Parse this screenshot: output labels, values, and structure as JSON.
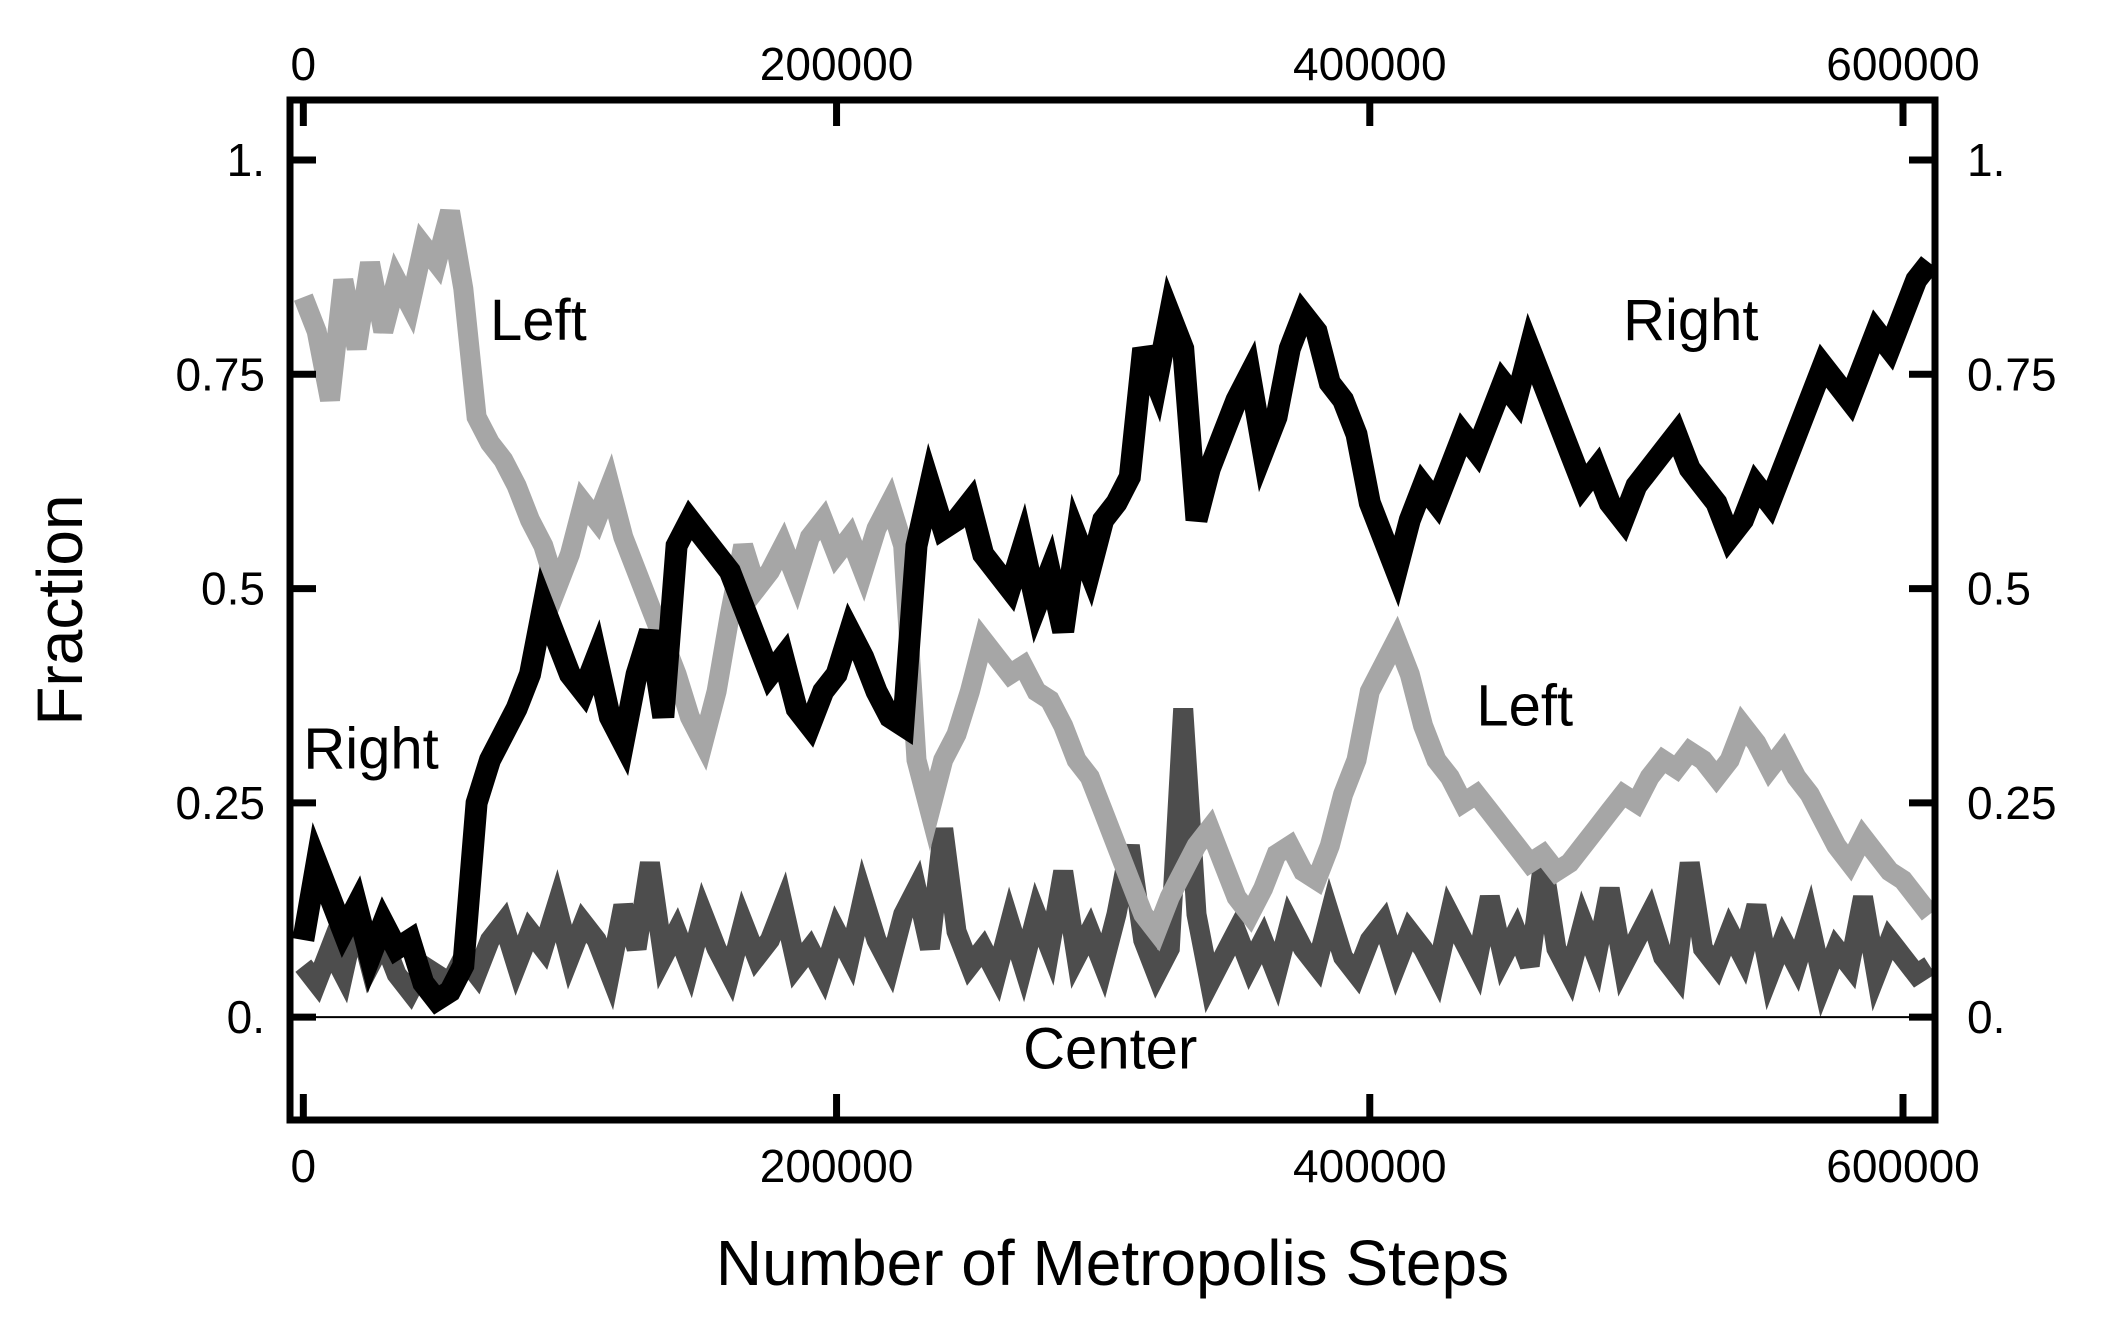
{
  "chart_data": {
    "type": "line",
    "title": "",
    "xlabel": "Number of Metropolis Steps",
    "ylabel": "Fraction",
    "xlim": [
      -5000,
      612000
    ],
    "ylim": [
      -0.12,
      1.07
    ],
    "x_ticks": [
      0,
      200000,
      400000,
      600000
    ],
    "x_tick_labels": [
      "0",
      "200000",
      "400000",
      "600000"
    ],
    "y_ticks": [
      0,
      0.25,
      0.5,
      0.75,
      1
    ],
    "y_tick_labels": [
      "0.",
      "0.25",
      "0.5",
      "0.75",
      "1."
    ],
    "mirror_axes": true,
    "grid": false,
    "legend": "none",
    "zero_line": true,
    "series": [
      {
        "name": "Left",
        "color": "#a6a6a6",
        "x": [
          0,
          5000,
          10000,
          15000,
          20000,
          25000,
          30000,
          35000,
          40000,
          45000,
          50000,
          55000,
          60000,
          65000,
          70000,
          75000,
          80000,
          85000,
          90000,
          95000,
          100000,
          105000,
          110000,
          115000,
          120000,
          125000,
          130000,
          135000,
          140000,
          145000,
          150000,
          155000,
          160000,
          165000,
          170000,
          175000,
          180000,
          185000,
          190000,
          195000,
          200000,
          205000,
          210000,
          215000,
          220000,
          225000,
          230000,
          235000,
          240000,
          245000,
          250000,
          255000,
          260000,
          265000,
          270000,
          275000,
          280000,
          285000,
          290000,
          295000,
          300000,
          305000,
          310000,
          315000,
          320000,
          325000,
          330000,
          335000,
          340000,
          345000,
          350000,
          355000,
          360000,
          365000,
          370000,
          375000,
          380000,
          385000,
          390000,
          395000,
          400000,
          405000,
          410000,
          415000,
          420000,
          425000,
          430000,
          435000,
          440000,
          445000,
          450000,
          455000,
          460000,
          465000,
          470000,
          475000,
          480000,
          485000,
          490000,
          495000,
          500000,
          505000,
          510000,
          515000,
          520000,
          525000,
          530000,
          535000,
          540000,
          545000,
          550000,
          555000,
          560000,
          565000,
          570000,
          575000,
          580000,
          585000,
          590000,
          595000,
          600000,
          605000,
          610000
        ],
        "values": [
          0.84,
          0.8,
          0.72,
          0.86,
          0.78,
          0.88,
          0.8,
          0.86,
          0.83,
          0.9,
          0.88,
          0.94,
          0.85,
          0.7,
          0.67,
          0.65,
          0.62,
          0.58,
          0.55,
          0.5,
          0.54,
          0.6,
          0.58,
          0.62,
          0.56,
          0.52,
          0.48,
          0.44,
          0.4,
          0.35,
          0.32,
          0.38,
          0.47,
          0.55,
          0.5,
          0.52,
          0.55,
          0.51,
          0.56,
          0.58,
          0.54,
          0.56,
          0.52,
          0.57,
          0.6,
          0.55,
          0.3,
          0.24,
          0.3,
          0.33,
          0.38,
          0.44,
          0.42,
          0.4,
          0.41,
          0.38,
          0.37,
          0.34,
          0.3,
          0.28,
          0.24,
          0.2,
          0.16,
          0.12,
          0.1,
          0.14,
          0.17,
          0.2,
          0.22,
          0.18,
          0.14,
          0.12,
          0.15,
          0.19,
          0.2,
          0.17,
          0.16,
          0.2,
          0.26,
          0.3,
          0.38,
          0.41,
          0.44,
          0.4,
          0.34,
          0.3,
          0.28,
          0.25,
          0.26,
          0.24,
          0.22,
          0.2,
          0.18,
          0.19,
          0.17,
          0.18,
          0.2,
          0.22,
          0.24,
          0.26,
          0.25,
          0.28,
          0.3,
          0.29,
          0.31,
          0.3,
          0.28,
          0.3,
          0.34,
          0.32,
          0.29,
          0.31,
          0.28,
          0.26,
          0.23,
          0.2,
          0.18,
          0.21,
          0.19,
          0.17,
          0.16,
          0.14,
          0.12
        ]
      },
      {
        "name": "Right",
        "color": "#000000",
        "x": [
          0,
          5000,
          10000,
          15000,
          20000,
          25000,
          30000,
          35000,
          40000,
          45000,
          50000,
          55000,
          60000,
          65000,
          70000,
          75000,
          80000,
          85000,
          90000,
          95000,
          100000,
          105000,
          110000,
          115000,
          120000,
          125000,
          130000,
          135000,
          140000,
          145000,
          150000,
          155000,
          160000,
          165000,
          170000,
          175000,
          180000,
          185000,
          190000,
          195000,
          200000,
          205000,
          210000,
          215000,
          220000,
          225000,
          230000,
          235000,
          240000,
          245000,
          250000,
          255000,
          260000,
          265000,
          270000,
          275000,
          280000,
          285000,
          290000,
          295000,
          300000,
          305000,
          310000,
          315000,
          320000,
          325000,
          330000,
          335000,
          340000,
          345000,
          350000,
          355000,
          360000,
          365000,
          370000,
          375000,
          380000,
          385000,
          390000,
          395000,
          400000,
          405000,
          410000,
          415000,
          420000,
          425000,
          430000,
          435000,
          440000,
          445000,
          450000,
          455000,
          460000,
          465000,
          470000,
          475000,
          480000,
          485000,
          490000,
          495000,
          500000,
          505000,
          510000,
          515000,
          520000,
          525000,
          530000,
          535000,
          540000,
          545000,
          550000,
          555000,
          560000,
          565000,
          570000,
          575000,
          580000,
          585000,
          590000,
          595000,
          600000,
          605000,
          610000
        ],
        "values": [
          0.09,
          0.18,
          0.14,
          0.1,
          0.13,
          0.07,
          0.11,
          0.08,
          0.09,
          0.04,
          0.02,
          0.03,
          0.06,
          0.25,
          0.3,
          0.33,
          0.36,
          0.4,
          0.48,
          0.44,
          0.4,
          0.38,
          0.42,
          0.35,
          0.32,
          0.4,
          0.45,
          0.35,
          0.55,
          0.58,
          0.56,
          0.54,
          0.52,
          0.48,
          0.44,
          0.4,
          0.42,
          0.36,
          0.34,
          0.38,
          0.4,
          0.45,
          0.42,
          0.38,
          0.35,
          0.34,
          0.55,
          0.62,
          0.57,
          0.58,
          0.6,
          0.54,
          0.52,
          0.5,
          0.55,
          0.48,
          0.52,
          0.45,
          0.56,
          0.52,
          0.58,
          0.6,
          0.63,
          0.78,
          0.74,
          0.82,
          0.78,
          0.58,
          0.64,
          0.68,
          0.72,
          0.75,
          0.66,
          0.7,
          0.78,
          0.82,
          0.8,
          0.74,
          0.72,
          0.68,
          0.6,
          0.56,
          0.52,
          0.58,
          0.62,
          0.6,
          0.64,
          0.68,
          0.66,
          0.7,
          0.74,
          0.72,
          0.78,
          0.74,
          0.7,
          0.66,
          0.62,
          0.64,
          0.6,
          0.58,
          0.62,
          0.64,
          0.66,
          0.68,
          0.64,
          0.62,
          0.6,
          0.56,
          0.58,
          0.62,
          0.6,
          0.64,
          0.68,
          0.72,
          0.76,
          0.74,
          0.72,
          0.76,
          0.8,
          0.78,
          0.82,
          0.86,
          0.88
        ]
      },
      {
        "name": "Center",
        "color": "#4d4d4d",
        "x": [
          0,
          5000,
          10000,
          15000,
          20000,
          25000,
          30000,
          35000,
          40000,
          45000,
          50000,
          55000,
          60000,
          65000,
          70000,
          75000,
          80000,
          85000,
          90000,
          95000,
          100000,
          105000,
          110000,
          115000,
          120000,
          125000,
          130000,
          135000,
          140000,
          145000,
          150000,
          155000,
          160000,
          165000,
          170000,
          175000,
          180000,
          185000,
          190000,
          195000,
          200000,
          205000,
          210000,
          215000,
          220000,
          225000,
          230000,
          235000,
          240000,
          245000,
          250000,
          255000,
          260000,
          265000,
          270000,
          275000,
          280000,
          285000,
          290000,
          295000,
          300000,
          305000,
          310000,
          315000,
          320000,
          325000,
          330000,
          335000,
          340000,
          345000,
          350000,
          355000,
          360000,
          365000,
          370000,
          375000,
          380000,
          385000,
          390000,
          395000,
          400000,
          405000,
          410000,
          415000,
          420000,
          425000,
          430000,
          435000,
          440000,
          445000,
          450000,
          455000,
          460000,
          465000,
          470000,
          475000,
          480000,
          485000,
          490000,
          495000,
          500000,
          505000,
          510000,
          515000,
          520000,
          525000,
          530000,
          535000,
          540000,
          545000,
          550000,
          555000,
          560000,
          565000,
          570000,
          575000,
          580000,
          585000,
          590000,
          595000,
          600000,
          605000,
          610000
        ],
        "values": [
          0.06,
          0.04,
          0.08,
          0.05,
          0.12,
          0.06,
          0.09,
          0.05,
          0.03,
          0.06,
          0.05,
          0.04,
          0.07,
          0.05,
          0.09,
          0.11,
          0.06,
          0.1,
          0.08,
          0.13,
          0.07,
          0.11,
          0.09,
          0.05,
          0.13,
          0.08,
          0.18,
          0.07,
          0.1,
          0.06,
          0.12,
          0.08,
          0.05,
          0.11,
          0.07,
          0.09,
          0.13,
          0.06,
          0.08,
          0.05,
          0.1,
          0.07,
          0.14,
          0.09,
          0.06,
          0.12,
          0.15,
          0.08,
          0.22,
          0.1,
          0.06,
          0.08,
          0.05,
          0.11,
          0.06,
          0.12,
          0.08,
          0.17,
          0.07,
          0.1,
          0.06,
          0.12,
          0.2,
          0.09,
          0.05,
          0.08,
          0.36,
          0.12,
          0.04,
          0.07,
          0.1,
          0.06,
          0.09,
          0.05,
          0.11,
          0.08,
          0.06,
          0.12,
          0.07,
          0.05,
          0.09,
          0.11,
          0.06,
          0.1,
          0.08,
          0.05,
          0.12,
          0.09,
          0.06,
          0.14,
          0.07,
          0.1,
          0.06,
          0.18,
          0.08,
          0.05,
          0.11,
          0.07,
          0.15,
          0.06,
          0.09,
          0.12,
          0.07,
          0.05,
          0.18,
          0.08,
          0.06,
          0.1,
          0.07,
          0.13,
          0.05,
          0.09,
          0.06,
          0.11,
          0.04,
          0.08,
          0.06,
          0.14,
          0.05,
          0.09,
          0.07,
          0.05,
          0.06
        ]
      }
    ],
    "annotations": [
      {
        "text": "Left",
        "x": 70000,
        "y": 0.79
      },
      {
        "text": "Left",
        "x": 440000,
        "y": 0.34
      },
      {
        "text": "Right",
        "x": 0,
        "y": 0.29
      },
      {
        "text": "Right",
        "x": 495000,
        "y": 0.79
      },
      {
        "text": "Center",
        "x": 270000,
        "y": -0.06
      }
    ]
  }
}
